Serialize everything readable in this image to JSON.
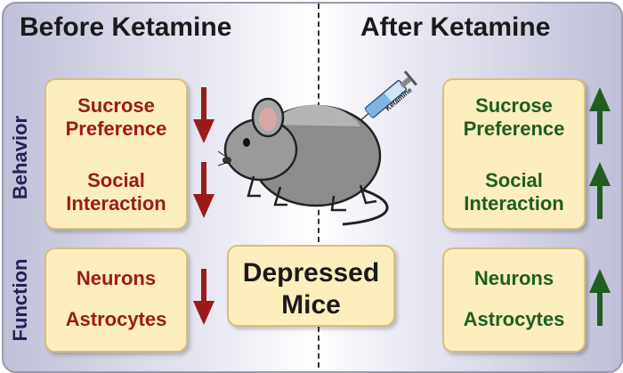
{
  "headings": {
    "before": "Before Ketamine",
    "after": "After Ketamine"
  },
  "side_labels": {
    "behavior": "Behavior",
    "function": "Function"
  },
  "before": {
    "sucrose": "Sucrose\nPreference",
    "social": "Social\nInteraction",
    "neurons": "Neurons",
    "astrocytes": "Astrocytes"
  },
  "after": {
    "sucrose": "Sucrose\nPreference",
    "social": "Social\nInteraction",
    "neurons": "Neurons",
    "astrocytes": "Astrocytes"
  },
  "center_label": "Depressed\nMice",
  "syringe_label": "Ketamine",
  "colors": {
    "decrease": "#9b1a1a",
    "increase": "#1f5e1f",
    "box_fill": "#fdeebd"
  },
  "arrows": {
    "before": "down",
    "after": "up"
  }
}
